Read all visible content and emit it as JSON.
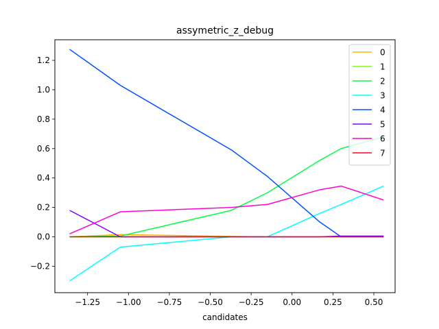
{
  "chart_data": {
    "type": "line",
    "title": "assymetric_z_debug",
    "xlabel": "candidates",
    "ylabel": "",
    "xlim": [
      -1.45,
      0.63
    ],
    "ylim": [
      -0.38,
      1.34
    ],
    "xticks": [
      -1.25,
      -1.0,
      -0.75,
      -0.5,
      -0.25,
      0.0,
      0.25,
      0.5
    ],
    "xtick_labels": [
      "−1.25",
      "−1.00",
      "−0.75",
      "−0.50",
      "−0.25",
      "0.00",
      "0.25",
      "0.50"
    ],
    "yticks": [
      -0.2,
      0.0,
      0.2,
      0.4,
      0.6,
      0.8,
      1.0,
      1.2
    ],
    "ytick_labels": [
      "−0.2",
      "0.0",
      "0.2",
      "0.4",
      "0.6",
      "0.8",
      "1.0",
      "1.2"
    ],
    "grid": false,
    "legend_position": "top-right",
    "series": [
      {
        "name": "0",
        "color": "#ffb000",
        "x": [
          -1.36,
          -1.05,
          -0.37,
          -0.15,
          0.17,
          0.3,
          0.56
        ],
        "y": [
          0.0,
          0.015,
          0.003,
          0.0,
          0.0,
          0.0,
          0.0
        ]
      },
      {
        "name": "1",
        "color": "#7fff00",
        "x": [
          -1.36,
          -1.05,
          -0.37,
          -0.15,
          0.17,
          0.3,
          0.56
        ],
        "y": [
          0.0,
          0.0,
          0.0,
          0.0,
          0.0,
          0.0,
          0.0
        ]
      },
      {
        "name": "2",
        "color": "#00ff40",
        "x": [
          -1.36,
          -1.05,
          -0.37,
          -0.15,
          0.17,
          0.3,
          0.56
        ],
        "y": [
          0.0,
          0.005,
          0.18,
          0.3,
          0.52,
          0.6,
          0.68
        ]
      },
      {
        "name": "3",
        "color": "#00ffff",
        "x": [
          -1.36,
          -1.05,
          -0.37,
          -0.15,
          0.17,
          0.3,
          0.56
        ],
        "y": [
          -0.3,
          -0.07,
          0.0,
          0.0,
          0.16,
          0.22,
          0.345
        ]
      },
      {
        "name": "4",
        "color": "#0050ff",
        "x": [
          -1.36,
          -1.05,
          -0.37,
          -0.15,
          0.17,
          0.3,
          0.56
        ],
        "y": [
          1.275,
          1.03,
          0.59,
          0.41,
          0.1,
          0.0,
          0.0
        ]
      },
      {
        "name": "5",
        "color": "#7f00ff",
        "x": [
          -1.36,
          -1.05,
          -0.37,
          -0.15,
          0.17,
          0.3,
          0.56
        ],
        "y": [
          0.18,
          0.0,
          0.0,
          0.0,
          0.0,
          0.005,
          0.005
        ]
      },
      {
        "name": "6",
        "color": "#ff00d0",
        "x": [
          -1.36,
          -1.05,
          -0.37,
          -0.15,
          0.17,
          0.3,
          0.56
        ],
        "y": [
          0.02,
          0.17,
          0.2,
          0.22,
          0.32,
          0.345,
          0.25
        ]
      },
      {
        "name": "7",
        "color": "#ff0020",
        "x": [
          -1.36,
          -1.05,
          -0.37,
          -0.15,
          0.17,
          0.3,
          0.56
        ],
        "y": [
          0.0,
          0.0,
          0.0,
          0.0,
          0.0,
          0.0,
          0.0
        ]
      }
    ]
  }
}
